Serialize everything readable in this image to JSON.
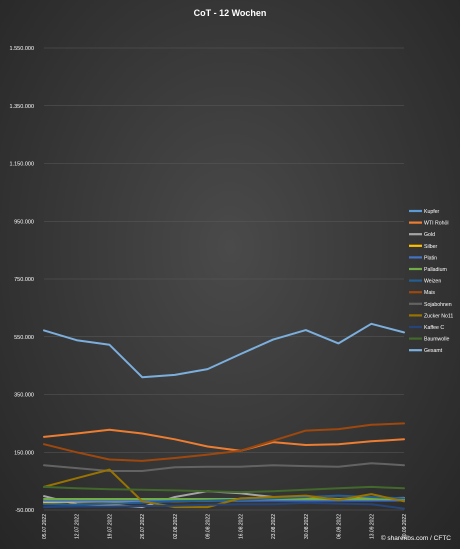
{
  "chart_data": {
    "type": "line",
    "title": "CoT - 12 Wochen",
    "xlabel": "",
    "ylabel": "",
    "ylim": [
      -50000,
      1650000
    ],
    "y_ticks": [
      -50000,
      150000,
      350000,
      550000,
      750000,
      950000,
      1150000,
      1350000,
      1550000
    ],
    "y_tick_labels": [
      "-50.000",
      "150.000",
      "350.000",
      "550.000",
      "750.000",
      "950.000",
      "1.150.000",
      "1.350.000",
      "1.550.000"
    ],
    "categories": [
      "05.07.2022",
      "12.07.2022",
      "19.07.2022",
      "26.07.2022",
      "02.08.2022",
      "09.08.2022",
      "16.08.2022",
      "23.08.2022",
      "30.08.2022",
      "06.09.2022",
      "13.09.2022",
      "20.09.2022"
    ],
    "grid": true,
    "legend_position": "right",
    "source": "© shareribs.com / CFTC",
    "series": [
      {
        "name": "Kupfer",
        "color": "#5b9bd5",
        "values": [
          -25000,
          -22000,
          -20000,
          -22000,
          -18000,
          -15000,
          -12000,
          -10000,
          -15000,
          -12000,
          -12000,
          -15000
        ]
      },
      {
        "name": "WTI Rohöl",
        "color": "#ed7d31",
        "values": [
          203000,
          215000,
          228000,
          215000,
          195000,
          170000,
          155000,
          185000,
          175000,
          178000,
          188000,
          195000
        ]
      },
      {
        "name": "Gold",
        "color": "#a5a5a5",
        "values": [
          -2000,
          -30000,
          -32000,
          -40000,
          -5000,
          15000,
          8000,
          -5000,
          -10000,
          -12000,
          -10000,
          -8000
        ]
      },
      {
        "name": "Silber",
        "color": "#ffc000",
        "values": [
          -22000,
          -20000,
          -20000,
          -22000,
          -20000,
          -18000,
          -15000,
          -12000,
          -10000,
          -12000,
          -10000,
          -12000
        ]
      },
      {
        "name": "Platin",
        "color": "#4472c4",
        "values": [
          -18000,
          -18000,
          -18000,
          -18000,
          -18000,
          -18000,
          -18000,
          -17000,
          -17000,
          -17000,
          -17000,
          -17000
        ]
      },
      {
        "name": "Palladium",
        "color": "#70ad47",
        "values": [
          -12000,
          -12000,
          -12000,
          -12000,
          -12000,
          -12000,
          -12000,
          -12000,
          -12000,
          -12000,
          -12000,
          -12000
        ]
      },
      {
        "name": "Weizen",
        "color": "#255e91",
        "values": [
          -30000,
          -32000,
          -28000,
          -25000,
          -20000,
          -18000,
          -15000,
          -10000,
          -5000,
          0,
          -5000,
          -10000
        ]
      },
      {
        "name": "Mais",
        "color": "#9e480e",
        "values": [
          178000,
          150000,
          125000,
          120000,
          130000,
          142000,
          155000,
          190000,
          225000,
          230000,
          245000,
          250000
        ]
      },
      {
        "name": "Sojabohnen",
        "color": "#636363",
        "values": [
          105000,
          95000,
          85000,
          85000,
          98000,
          100000,
          100000,
          105000,
          102000,
          100000,
          112000,
          105000
        ]
      },
      {
        "name": "Zucker No11",
        "color": "#997300",
        "values": [
          30000,
          60000,
          90000,
          -20000,
          -40000,
          -40000,
          -10000,
          -5000,
          0,
          -15000,
          5000,
          -20000
        ]
      },
      {
        "name": "Kaffee C",
        "color": "#264478",
        "values": [
          -40000,
          -38000,
          -38000,
          -36000,
          -35000,
          -32000,
          -30000,
          -30000,
          -25000,
          -28000,
          -30000,
          -45000
        ]
      },
      {
        "name": "Baumwolle",
        "color": "#43682b",
        "values": [
          30000,
          25000,
          22000,
          20000,
          18000,
          15000,
          12000,
          15000,
          20000,
          25000,
          30000,
          25000
        ]
      },
      {
        "name": "Gesamt",
        "color": "#7cafdd",
        "values": [
          572000,
          538000,
          522000,
          410000,
          418000,
          438000,
          490000,
          540000,
          573000,
          527000,
          595000,
          565000
        ]
      }
    ]
  }
}
